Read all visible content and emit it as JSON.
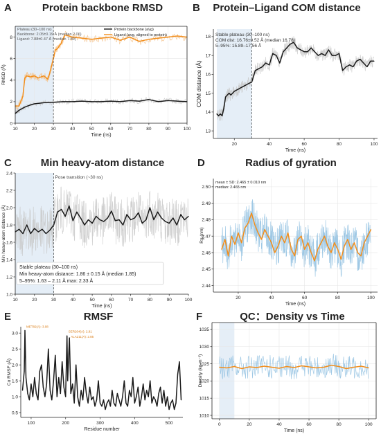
{
  "colors": {
    "orange": "#f28e1c",
    "orange_band": "#f5c28a",
    "black": "#1a1a1a",
    "gray_band": "#c8c8c8",
    "blue_line": "#8fbfe0",
    "blue_shade": "#dfeaf5",
    "axis": "#222222"
  },
  "chart_data": [
    {
      "letter": "A",
      "type": "line",
      "title": "Protein backbone RMSD",
      "xlabel": "Time (ns)",
      "ylabel": "RMSD (Å)",
      "xlim": [
        10,
        100
      ],
      "ylim": [
        0,
        9
      ],
      "xticks": [
        10,
        20,
        30,
        40,
        50,
        60,
        70,
        80,
        90,
        100
      ],
      "yticks": [
        0,
        2,
        4,
        6,
        8
      ],
      "shade": [
        10,
        30
      ],
      "vline": 30,
      "grid": true,
      "annotation": [
        "Plateau (30–100 ns)",
        "Backbone: 2.05±0.19 Å (median 2.06)",
        "Ligand:      7.88±0.47 Å (median 7.89)"
      ],
      "legend": [
        "Protein backbone (avg)",
        "Ligand (avg, aligned to protein)"
      ],
      "legend_position": "top-right",
      "series": [
        {
          "name": "Protein backbone (avg)",
          "color": "black",
          "band_color": "gray_band",
          "band": 0.25,
          "x": [
            10,
            12,
            15,
            18,
            20,
            25,
            30,
            35,
            40,
            45,
            50,
            55,
            60,
            65,
            70,
            75,
            80,
            85,
            90,
            95,
            100
          ],
          "values": [
            0.9,
            1.2,
            1.5,
            1.7,
            1.8,
            1.9,
            1.95,
            2.0,
            2.0,
            2.05,
            2.0,
            2.0,
            2.05,
            2.0,
            2.1,
            2.05,
            2.2,
            2.0,
            2.1,
            2.05,
            2.0
          ]
        },
        {
          "name": "Ligand (avg, aligned to protein)",
          "color": "orange",
          "band_color": "orange_band",
          "band": 0.35,
          "x": [
            10,
            12,
            14,
            15,
            16,
            18,
            20,
            22,
            25,
            27,
            28,
            30,
            31,
            32,
            34,
            36,
            40,
            45,
            50,
            55,
            60,
            65,
            70,
            75,
            80,
            85,
            90,
            95,
            100
          ],
          "values": [
            1.6,
            1.6,
            2.5,
            4.2,
            4.4,
            4.3,
            4.4,
            4.2,
            4.4,
            4.1,
            4.6,
            6.0,
            6.8,
            6.9,
            7.4,
            8.2,
            8.0,
            7.9,
            7.8,
            7.9,
            8.0,
            7.7,
            8.0,
            7.6,
            7.8,
            7.9,
            8.0,
            8.1,
            8.0
          ]
        }
      ]
    },
    {
      "letter": "B",
      "type": "line",
      "title": "Protein–Ligand COM distance",
      "xlabel": "Time (ns)",
      "ylabel": "COM distance (Å)",
      "xlim": [
        8,
        102
      ],
      "ylim": [
        12.6,
        18.4
      ],
      "xticks": [
        20,
        40,
        60,
        80,
        100
      ],
      "yticks": [
        13,
        14,
        15,
        16,
        17,
        18
      ],
      "shade": [
        10,
        30
      ],
      "vline": 30,
      "grid": false,
      "annotation": [
        "Stable plateau (30–100 ns)",
        "COM dist: 16.76±0.52 Å (median 16.78)",
        "5–95%: 15.89–17.56 Å"
      ],
      "series": [
        {
          "color": "black",
          "band_color": "gray_band",
          "band": 0.35,
          "x": [
            10,
            11,
            12,
            13,
            14,
            15,
            16,
            17,
            18,
            20,
            22,
            24,
            26,
            28,
            30,
            32,
            34,
            36,
            38,
            40,
            42,
            44,
            46,
            48,
            50,
            52,
            54,
            56,
            58,
            60,
            62,
            64,
            66,
            68,
            70,
            72,
            74,
            76,
            78,
            80,
            82,
            84,
            86,
            88,
            90,
            92,
            94,
            96,
            98,
            100
          ],
          "values": [
            13.9,
            13.8,
            13.9,
            13.8,
            14.2,
            14.8,
            14.9,
            15.0,
            14.9,
            15.1,
            15.2,
            15.3,
            15.4,
            15.5,
            15.6,
            16.2,
            16.3,
            16.4,
            16.6,
            16.5,
            17.1,
            17.0,
            16.6,
            17.2,
            17.4,
            17.6,
            17.7,
            17.4,
            17.3,
            17.2,
            17.2,
            17.4,
            17.2,
            17.0,
            17.1,
            17.0,
            17.3,
            17.0,
            17.0,
            17.1,
            16.2,
            16.4,
            16.5,
            16.4,
            16.7,
            16.8,
            16.6,
            16.4,
            16.7,
            16.7
          ]
        }
      ]
    },
    {
      "letter": "C",
      "type": "line",
      "title": "Min heavy-atom distance",
      "xlabel": "Time (ns)",
      "ylabel": "Min heavy-atom distance (Å)",
      "xlim": [
        10,
        100
      ],
      "ylim": [
        1.0,
        2.4
      ],
      "xticks": [
        10,
        20,
        30,
        40,
        50,
        60,
        70,
        80,
        90,
        100
      ],
      "yticks": [
        1.0,
        1.2,
        1.4,
        1.6,
        1.8,
        2.0,
        2.2,
        2.4
      ],
      "shade": [
        10,
        30
      ],
      "vline": 30,
      "vline_label": "Pose transition (~30 ns)",
      "grid": false,
      "annotation": [
        "Stable plateau (30–100 ns)",
        "Min heavy-atom distance: 1.86 ± 0.15 Å (median 1.85)",
        "5–95%: 1.63 – 2.11 Å     max: 2.33 Å"
      ],
      "series": [
        {
          "color": "black",
          "band_color": "gray_band",
          "band": 0.28,
          "x": [
            10,
            12,
            14,
            16,
            18,
            20,
            22,
            24,
            26,
            28,
            30,
            32,
            34,
            36,
            38,
            40,
            42,
            44,
            46,
            48,
            50,
            52,
            54,
            56,
            58,
            60,
            62,
            64,
            66,
            68,
            70,
            72,
            74,
            76,
            78,
            80,
            82,
            84,
            86,
            88,
            90,
            92,
            94,
            96,
            98,
            100
          ],
          "values": [
            1.72,
            1.75,
            1.7,
            1.8,
            1.7,
            1.76,
            1.72,
            1.75,
            1.7,
            1.74,
            1.8,
            1.95,
            1.98,
            1.9,
            2.02,
            1.85,
            1.95,
            1.88,
            1.8,
            1.86,
            1.82,
            1.9,
            1.86,
            1.84,
            1.88,
            1.96,
            1.85,
            1.86,
            1.8,
            1.92,
            1.86,
            1.88,
            1.94,
            1.82,
            1.86,
            2.0,
            1.86,
            1.95,
            1.88,
            1.84,
            1.82,
            1.88,
            1.8,
            1.92,
            1.86,
            1.9
          ]
        }
      ]
    },
    {
      "letter": "D",
      "type": "line",
      "title": "Radius of gyration",
      "xlabel": "Time (ns)",
      "ylabel": "Rg (nm)",
      "xlim": [
        5,
        104
      ],
      "ylim": [
        2.436,
        2.505
      ],
      "xticks": [
        20,
        40,
        60,
        80,
        100
      ],
      "yticks": [
        2.44,
        2.45,
        2.46,
        2.47,
        2.48,
        2.49,
        2.5
      ],
      "grid": true,
      "annotation": [
        "mean ± SD: 2.465 ± 0.010 nm",
        "median: 2.465 nm"
      ],
      "series": [
        {
          "color": "orange",
          "band_color": "blue_line",
          "band": 0.012,
          "x": [
            10,
            12,
            14,
            16,
            18,
            20,
            22,
            24,
            26,
            28,
            30,
            32,
            34,
            36,
            38,
            40,
            42,
            44,
            46,
            48,
            50,
            52,
            54,
            56,
            58,
            60,
            62,
            64,
            66,
            68,
            70,
            72,
            74,
            76,
            78,
            80,
            82,
            84,
            86,
            88,
            90,
            92,
            94,
            96,
            98,
            100
          ],
          "values": [
            2.462,
            2.468,
            2.458,
            2.47,
            2.465,
            2.472,
            2.466,
            2.475,
            2.478,
            2.484,
            2.477,
            2.472,
            2.468,
            2.474,
            2.47,
            2.466,
            2.46,
            2.464,
            2.47,
            2.466,
            2.472,
            2.462,
            2.458,
            2.468,
            2.47,
            2.462,
            2.466,
            2.46,
            2.455,
            2.462,
            2.466,
            2.47,
            2.464,
            2.46,
            2.466,
            2.462,
            2.456,
            2.464,
            2.468,
            2.462,
            2.466,
            2.46,
            2.458,
            2.466,
            2.47,
            2.474
          ]
        }
      ]
    },
    {
      "letter": "E",
      "type": "line",
      "title": "RMSF",
      "xlabel": "Residue number",
      "ylabel": "Cα RMSF (Å)",
      "xlim": [
        70,
        540
      ],
      "ylim": [
        0.35,
        3.2
      ],
      "xticks": [
        100,
        200,
        300,
        400,
        500
      ],
      "yticks": [
        0.5,
        1.0,
        1.5,
        2.0,
        2.5,
        3.0
      ],
      "grid": false,
      "annotation": [
        "MET82(A): 3.08",
        "SER204(A): 2.91",
        "ALA211(A): 2.85"
      ],
      "series": [
        {
          "color": "black",
          "x": [
            75,
            80,
            82,
            85,
            90,
            95,
            100,
            105,
            110,
            115,
            120,
            125,
            130,
            135,
            140,
            145,
            150,
            155,
            160,
            165,
            170,
            175,
            180,
            185,
            190,
            195,
            200,
            204,
            206,
            211,
            215,
            220,
            225,
            230,
            235,
            240,
            245,
            250,
            255,
            260,
            265,
            270,
            275,
            280,
            285,
            290,
            295,
            300,
            305,
            310,
            315,
            320,
            325,
            330,
            335,
            340,
            345,
            350,
            355,
            360,
            365,
            370,
            375,
            380,
            385,
            390,
            395,
            400,
            405,
            410,
            415,
            420,
            425,
            430,
            435,
            440,
            445,
            450,
            455,
            460,
            465,
            470,
            475,
            480,
            485,
            490,
            495,
            500,
            505,
            510,
            515,
            520,
            525,
            530,
            535
          ],
          "values": [
            1.2,
            1.8,
            3.08,
            1.6,
            1.1,
            0.9,
            1.4,
            1.0,
            1.6,
            1.1,
            0.9,
            1.8,
            2.0,
            1.3,
            1.0,
            1.4,
            2.5,
            1.2,
            0.9,
            1.5,
            2.3,
            1.0,
            1.6,
            1.1,
            2.1,
            1.3,
            1.0,
            2.91,
            1.5,
            2.85,
            1.1,
            1.4,
            0.8,
            2.0,
            1.0,
            0.7,
            1.2,
            0.9,
            1.6,
            1.1,
            0.8,
            1.3,
            0.9,
            1.0,
            0.7,
            0.9,
            1.5,
            0.8,
            0.7,
            0.9,
            0.6,
            0.8,
            0.9,
            0.7,
            1.2,
            0.8,
            0.7,
            1.1,
            0.9,
            0.7,
            1.0,
            1.5,
            0.8,
            0.7,
            1.2,
            1.0,
            1.6,
            0.8,
            1.0,
            1.3,
            0.7,
            1.0,
            1.4,
            0.9,
            1.2,
            1.0,
            1.5,
            0.8,
            1.0,
            0.9,
            0.7,
            1.1,
            1.3,
            0.8,
            1.2,
            0.7,
            1.0,
            0.6,
            0.8,
            0.9,
            0.6,
            0.8,
            1.7,
            2.1,
            0.9
          ]
        }
      ]
    },
    {
      "letter": "F",
      "type": "line",
      "title": "QC：Density vs Time",
      "xlabel": "Time (ns)",
      "ylabel": "Density (kg m⁻³)",
      "xlim": [
        -5,
        105
      ],
      "ylim": [
        1009,
        1037
      ],
      "xticks": [
        0,
        20,
        40,
        60,
        80,
        100
      ],
      "yticks": [
        1010,
        1015,
        1020,
        1025,
        1030,
        1035
      ],
      "shade": [
        0,
        10
      ],
      "grid": true,
      "series": [
        {
          "color": "orange",
          "band_color": "blue_line",
          "band": 3.5,
          "x": [
            0,
            5,
            10,
            15,
            20,
            25,
            30,
            35,
            40,
            45,
            50,
            55,
            60,
            65,
            70,
            75,
            80,
            85,
            90,
            95,
            100
          ],
          "values": [
            1024.0,
            1023.8,
            1024.2,
            1023.6,
            1024.1,
            1023.9,
            1024.3,
            1024.0,
            1023.7,
            1024.2,
            1023.9,
            1024.4,
            1024.1,
            1023.8,
            1024.0,
            1024.6,
            1024.2,
            1023.6,
            1024.0,
            1024.3,
            1023.8
          ]
        }
      ]
    }
  ]
}
